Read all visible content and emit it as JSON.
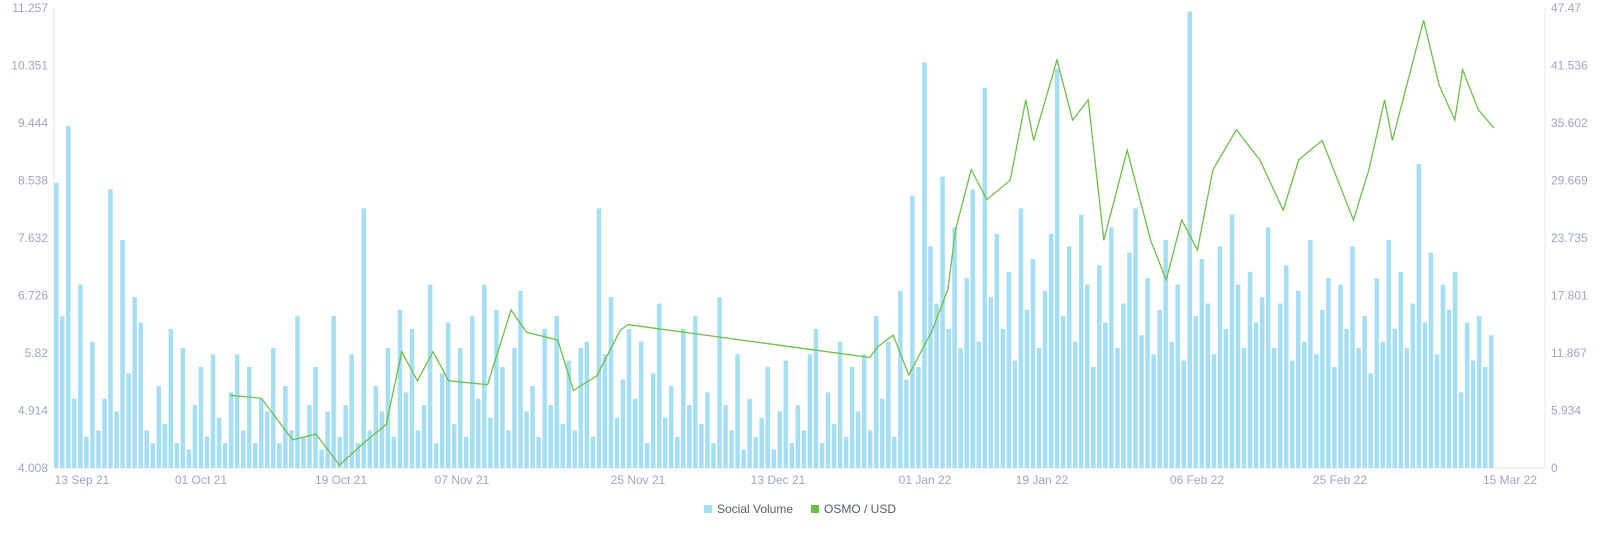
{
  "chart_data": {
    "type": "bar+line",
    "left_axis": {
      "ticks": [
        "4.008",
        "4.914",
        "5.82",
        "6.726",
        "7.632",
        "8.538",
        "9.444",
        "10.351",
        "11.257"
      ],
      "range": [
        4.008,
        11.257
      ]
    },
    "right_axis": {
      "ticks": [
        "0",
        "5.934",
        "11.867",
        "17.801",
        "23.735",
        "29.669",
        "35.602",
        "41.536",
        "47.47"
      ],
      "range": [
        0,
        47.47
      ]
    },
    "x_axis": {
      "ticks": [
        "13 Sep 21",
        "01 Oct 21",
        "19 Oct 21",
        "07 Nov 21",
        "25 Nov 21",
        "13 Dec 21",
        "01 Jan 22",
        "19 Jan 22",
        "06 Feb 22",
        "25 Feb 22",
        "15 Mar 22"
      ],
      "range": [
        "2021-09-09",
        "2022-03-15"
      ]
    },
    "grid": false,
    "legend": "bottom",
    "series": [
      {
        "name": "Social Volume",
        "type": "bar",
        "axis": "left",
        "color": "#a6def4",
        "values": [
          8.5,
          6.4,
          9.4,
          5.1,
          6.9,
          4.5,
          6.0,
          4.6,
          5.1,
          8.4,
          4.9,
          7.6,
          5.5,
          6.7,
          6.3,
          4.6,
          4.4,
          5.3,
          4.7,
          6.2,
          4.4,
          5.9,
          4.3,
          5.0,
          5.6,
          4.5,
          5.8,
          4.8,
          4.4,
          5.2,
          5.8,
          4.6,
          5.6,
          4.4,
          5.1,
          4.9,
          5.9,
          4.4,
          5.3,
          4.6,
          6.4,
          4.5,
          5.0,
          5.6,
          4.3,
          4.9,
          6.4,
          4.5,
          5.0,
          5.8,
          4.4,
          8.1,
          4.6,
          5.3,
          4.9,
          5.9,
          4.5,
          6.5,
          5.2,
          6.2,
          4.6,
          5.0,
          6.9,
          4.4,
          5.5,
          6.3,
          4.7,
          5.9,
          4.5,
          6.4,
          5.1,
          6.9,
          4.8,
          6.5,
          5.6,
          4.6,
          5.9,
          6.8,
          4.9,
          5.3,
          4.5,
          6.2,
          5.0,
          6.4,
          4.7,
          5.7,
          4.6,
          5.9,
          6.0,
          4.5,
          8.1,
          5.8,
          6.7,
          4.8,
          5.4,
          6.2,
          5.1,
          6.0,
          4.4,
          5.5,
          6.6,
          4.8,
          5.3,
          4.5,
          6.2,
          5.0,
          6.4,
          4.7,
          5.2,
          4.4,
          6.7,
          5.0,
          4.6,
          5.8,
          4.3,
          5.1,
          4.5,
          4.8,
          5.6,
          4.3,
          4.9,
          5.7,
          4.4,
          5.0,
          4.6,
          5.8,
          6.2,
          4.4,
          5.2,
          4.7,
          6.0,
          4.5,
          5.6,
          4.9,
          5.8,
          4.6,
          6.4,
          5.1,
          6.0,
          4.5,
          6.8,
          5.4,
          8.3,
          5.6,
          10.4,
          7.5,
          6.6,
          8.6,
          6.2,
          7.8,
          5.9,
          7.0,
          8.4,
          6.0,
          10.0,
          6.7,
          7.7,
          6.2,
          7.1,
          5.7,
          8.1,
          6.5,
          7.3,
          5.9,
          6.8,
          7.7,
          10.3,
          6.4,
          7.5,
          6.0,
          8.0,
          6.9,
          5.6,
          7.2,
          6.3,
          7.8,
          5.9,
          6.6,
          7.4,
          8.1,
          6.1,
          7.0,
          5.8,
          6.5,
          7.6,
          6.0,
          6.9,
          5.7,
          11.2,
          6.4,
          7.3,
          6.6,
          5.8,
          7.5,
          6.2,
          8.0,
          6.9,
          5.9,
          7.1,
          6.3,
          6.7,
          7.8,
          5.9,
          6.6,
          7.2,
          5.7,
          6.8,
          6.0,
          7.6,
          5.8,
          6.5,
          7.0,
          5.6,
          6.9,
          6.2,
          7.5,
          5.9,
          6.4,
          5.5,
          7.0,
          6.0,
          7.6,
          6.2,
          7.1,
          5.9,
          6.6,
          8.8,
          6.3,
          7.4,
          5.8,
          6.9,
          6.5,
          7.1,
          5.2,
          6.3,
          5.7,
          6.4,
          5.6,
          6.1
        ]
      },
      {
        "name": "OSMO / USD",
        "type": "line",
        "axis": "right",
        "color": "#6cc04a",
        "x": [
          "2021-10-02",
          "2021-10-06",
          "2021-10-10",
          "2021-10-13",
          "2021-10-16",
          "2021-10-19",
          "2021-10-22",
          "2021-10-24",
          "2021-10-26",
          "2021-10-28",
          "2021-10-30",
          "2021-11-04",
          "2021-11-07",
          "2021-11-09",
          "2021-11-13",
          "2021-11-15",
          "2021-11-18",
          "2021-11-21",
          "2021-11-22",
          "2021-12-23",
          "2021-12-24",
          "2021-12-26",
          "2021-12-28",
          "2021-12-31",
          "2022-01-02",
          "2022-01-03",
          "2022-01-05",
          "2022-01-07",
          "2022-01-10",
          "2022-01-12",
          "2022-01-13",
          "2022-01-16",
          "2022-01-18",
          "2022-01-20",
          "2022-01-22",
          "2022-01-25",
          "2022-01-28",
          "2022-01-30",
          "2022-02-01",
          "2022-02-03",
          "2022-02-05",
          "2022-02-08",
          "2022-02-11",
          "2022-02-14",
          "2022-02-16",
          "2022-02-19",
          "2022-02-21",
          "2022-02-23",
          "2022-02-25",
          "2022-02-27",
          "2022-02-28",
          "2022-03-02",
          "2022-03-04",
          "2022-03-06",
          "2022-03-08",
          "2022-03-09",
          "2022-03-11",
          "2022-03-13"
        ],
        "values": [
          7.5,
          7.2,
          2.9,
          3.5,
          0.3,
          2.5,
          4.5,
          12.0,
          9.0,
          12.0,
          9.0,
          8.6,
          16.3,
          14.0,
          13.2,
          8.0,
          9.5,
          14.2,
          14.8,
          11.4,
          12.5,
          13.7,
          9.6,
          14.2,
          18.4,
          24.6,
          30.8,
          27.7,
          29.7,
          38.0,
          33.8,
          42.1,
          35.9,
          38.0,
          23.5,
          32.8,
          23.5,
          19.4,
          25.6,
          22.5,
          30.8,
          34.9,
          31.8,
          26.6,
          31.8,
          33.8,
          29.7,
          25.6,
          30.8,
          38.0,
          33.8,
          40.0,
          46.2,
          39.5,
          35.9,
          41.1,
          37.0,
          35.1
        ]
      }
    ]
  }
}
